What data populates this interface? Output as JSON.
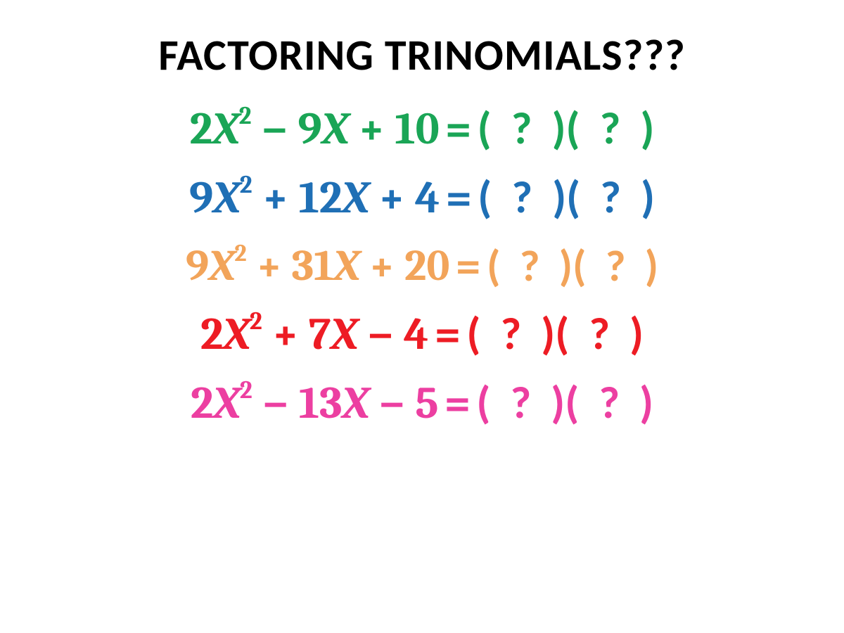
{
  "title": {
    "text": "FACTORING TRINOMIALS???",
    "color": "#000000",
    "fontsize": 62
  },
  "equations": [
    {
      "coef_a": "2",
      "var1": "X",
      "exp": "2",
      "op1": "−",
      "coef_b": "9",
      "var2": "X",
      "op2": "+",
      "coef_c": "10",
      "color": "#1aa556",
      "fontsize": 64
    },
    {
      "coef_a": "9",
      "var1": "X",
      "exp": "2",
      "op1": "+",
      "coef_b": "12",
      "var2": "X",
      "op2": "+",
      "coef_c": "4",
      "color": "#1f6fb5",
      "fontsize": 64
    },
    {
      "coef_a": "9",
      "var1": "X",
      "exp": "2",
      "op1": "+",
      "coef_b": "31",
      "var2": "X",
      "op2": "+",
      "coef_c": "20",
      "color": "#f2a45a",
      "fontsize": 62
    },
    {
      "coef_a": "2",
      "var1": "X",
      "exp": "2",
      "op1": "+",
      "coef_b": "7",
      "var2": "X",
      "op2": "−",
      "coef_c": "4",
      "color": "#ed1c24",
      "fontsize": 64
    },
    {
      "coef_a": "2",
      "var1": "X",
      "exp": "2",
      "op1": "−",
      "coef_b": "13",
      "var2": "X",
      "op2": "−",
      "coef_c": "5",
      "color": "#ec3fa1",
      "fontsize": 64
    }
  ],
  "rhs_template": {
    "equals": "=",
    "open": "(",
    "qmark": "?",
    "close": ")"
  },
  "background_color": "#ffffff"
}
